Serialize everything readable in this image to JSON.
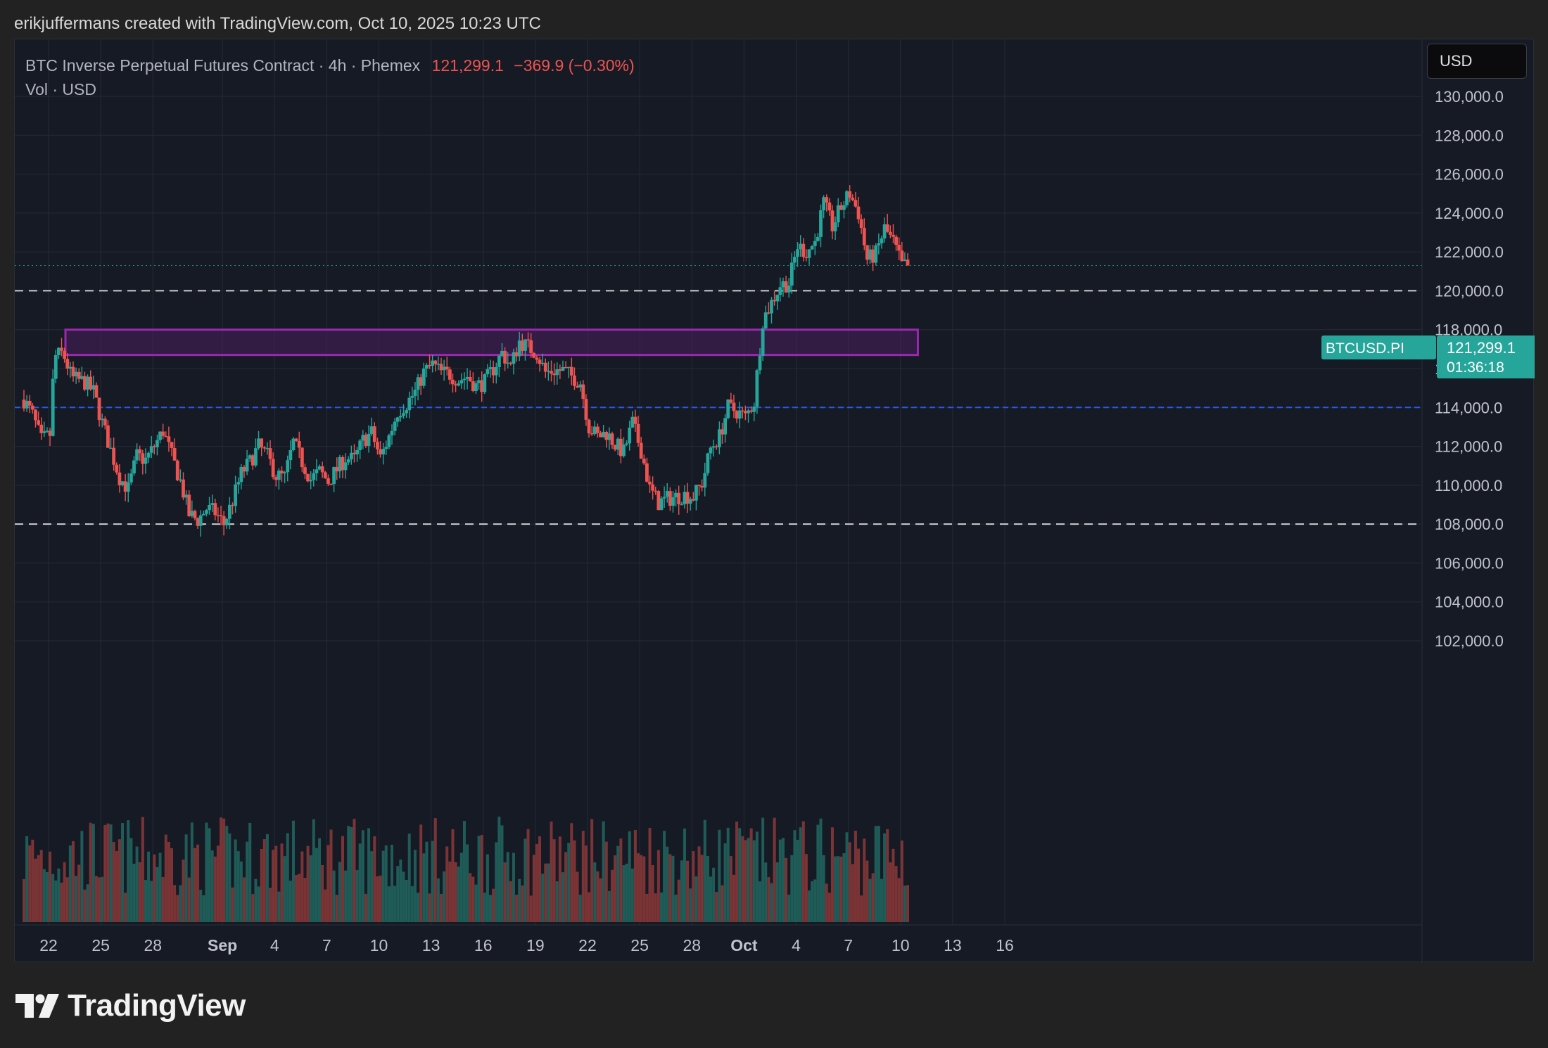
{
  "header": {
    "attribution": "erikjuffermans created with TradingView.com, Oct 10, 2025 10:23 UTC"
  },
  "legend": {
    "symbol": "BTC Inverse Perpetual Futures Contract · 4h · Phemex",
    "last": "121,299.1",
    "change": "−369.9 (−0.30%)",
    "volume_label": "Vol · USD"
  },
  "toolbar": {
    "currency_button": "USD"
  },
  "price_label": {
    "ticker": "BTCUSD.PI",
    "price": "121,299.1",
    "countdown": "01:36:18"
  },
  "branding": {
    "logo_text": "TradingView"
  },
  "colors": {
    "up": "#26a69a",
    "down": "#ef5350",
    "zone_border": "#9c27b0",
    "zone_fill": "#4a1f5f",
    "blue_line": "#2962ff",
    "white_line": "#e0e0e0",
    "grid": "#262a36",
    "axis_text": "#c0c3cc",
    "price_tag": "#26a69a"
  },
  "chart_data": {
    "type": "candlestick",
    "title": "BTC Inverse Perpetual Futures Contract · 4h · Phemex",
    "interval": "4h",
    "y_axis": {
      "min": 101500,
      "max": 131000,
      "position": "right",
      "ticks": [
        102000,
        104000,
        106000,
        108000,
        110000,
        112000,
        114000,
        116000,
        118000,
        120000,
        122000,
        124000,
        126000,
        128000,
        130000
      ],
      "tick_labels": [
        "102,000.0",
        "104,000.0",
        "106,000.0",
        "108,000.0",
        "110,000.0",
        "112,000.0",
        "114,000.0",
        "116,000.0",
        "118,000.0",
        "120,000.0",
        "122,000.0",
        "124,000.0",
        "126,000.0",
        "128,000.0",
        "130,000.0"
      ]
    },
    "x_axis": {
      "start_date": "2025-08-20T12:00Z",
      "end_date": "2025-10-17T00:00Z",
      "ticks": [
        {
          "label": "22",
          "date": "2025-08-22"
        },
        {
          "label": "25",
          "date": "2025-08-25"
        },
        {
          "label": "28",
          "date": "2025-08-28"
        },
        {
          "label": "Sep",
          "date": "2025-09-01",
          "bold": true
        },
        {
          "label": "4",
          "date": "2025-09-04"
        },
        {
          "label": "7",
          "date": "2025-09-07"
        },
        {
          "label": "10",
          "date": "2025-09-10"
        },
        {
          "label": "13",
          "date": "2025-09-13"
        },
        {
          "label": "16",
          "date": "2025-09-16"
        },
        {
          "label": "19",
          "date": "2025-09-19"
        },
        {
          "label": "22",
          "date": "2025-09-22"
        },
        {
          "label": "25",
          "date": "2025-09-25"
        },
        {
          "label": "28",
          "date": "2025-09-28"
        },
        {
          "label": "Oct",
          "date": "2025-10-01",
          "bold": true
        },
        {
          "label": "4",
          "date": "2025-10-04"
        },
        {
          "label": "7",
          "date": "2025-10-07"
        },
        {
          "label": "10",
          "date": "2025-10-10"
        },
        {
          "label": "13",
          "date": "2025-10-13"
        },
        {
          "label": "16",
          "date": "2025-10-16"
        }
      ]
    },
    "close_path": [
      [
        "2025-08-20T12:00Z",
        114400
      ],
      [
        "2025-08-21T00:00Z",
        113600
      ],
      [
        "2025-08-21T12:00Z",
        112300
      ],
      [
        "2025-08-22T00:00Z",
        112600
      ],
      [
        "2025-08-22T06:00Z",
        116600
      ],
      [
        "2025-08-22T18:00Z",
        116800
      ],
      [
        "2025-08-23T06:00Z",
        115500
      ],
      [
        "2025-08-24T00:00Z",
        115300
      ],
      [
        "2025-08-24T12:00Z",
        114800
      ],
      [
        "2025-08-25T00:00Z",
        113200
      ],
      [
        "2025-08-25T12:00Z",
        111800
      ],
      [
        "2025-08-26T00:00Z",
        110400
      ],
      [
        "2025-08-26T12:00Z",
        109800
      ],
      [
        "2025-08-27T00:00Z",
        111500
      ],
      [
        "2025-08-27T12:00Z",
        111300
      ],
      [
        "2025-08-28T00:00Z",
        112000
      ],
      [
        "2025-08-28T12:00Z",
        112800
      ],
      [
        "2025-08-29T00:00Z",
        111500
      ],
      [
        "2025-08-29T12:00Z",
        110200
      ],
      [
        "2025-08-30T00:00Z",
        108500
      ],
      [
        "2025-08-30T12:00Z",
        108200
      ],
      [
        "2025-08-31T00:00Z",
        108800
      ],
      [
        "2025-08-31T12:00Z",
        108600
      ],
      [
        "2025-09-01T00:00Z",
        108000
      ],
      [
        "2025-09-01T12:00Z",
        109200
      ],
      [
        "2025-09-02T00:00Z",
        110600
      ],
      [
        "2025-09-02T12:00Z",
        111200
      ],
      [
        "2025-09-03T00:00Z",
        112000
      ],
      [
        "2025-09-03T12:00Z",
        111500
      ],
      [
        "2025-09-04T00:00Z",
        110500
      ],
      [
        "2025-09-04T12:00Z",
        110400
      ],
      [
        "2025-09-05T00:00Z",
        112200
      ],
      [
        "2025-09-05T12:00Z",
        111200
      ],
      [
        "2025-09-06T00:00Z",
        110300
      ],
      [
        "2025-09-06T12:00Z",
        110700
      ],
      [
        "2025-09-07T00:00Z",
        110200
      ],
      [
        "2025-09-07T12:00Z",
        110800
      ],
      [
        "2025-09-08T00:00Z",
        111400
      ],
      [
        "2025-09-08T12:00Z",
        111300
      ],
      [
        "2025-09-09T00:00Z",
        112300
      ],
      [
        "2025-09-09T12:00Z",
        112700
      ],
      [
        "2025-09-10T00:00Z",
        111400
      ],
      [
        "2025-09-10T12:00Z",
        112500
      ],
      [
        "2025-09-11T00:00Z",
        113800
      ],
      [
        "2025-09-11T12:00Z",
        114200
      ],
      [
        "2025-09-12T00:00Z",
        114800
      ],
      [
        "2025-09-12T12:00Z",
        115800
      ],
      [
        "2025-09-13T00:00Z",
        116200
      ],
      [
        "2025-09-13T12:00Z",
        115800
      ],
      [
        "2025-09-14T00:00Z",
        115700
      ],
      [
        "2025-09-14T12:00Z",
        115400
      ],
      [
        "2025-09-15T00:00Z",
        115600
      ],
      [
        "2025-09-15T12:00Z",
        115100
      ],
      [
        "2025-09-16T00:00Z",
        115300
      ],
      [
        "2025-09-16T12:00Z",
        116000
      ],
      [
        "2025-09-17T00:00Z",
        116800
      ],
      [
        "2025-09-17T12:00Z",
        116100
      ],
      [
        "2025-09-18T00:00Z",
        117400
      ],
      [
        "2025-09-18T12:00Z",
        117100
      ],
      [
        "2025-09-19T00:00Z",
        116800
      ],
      [
        "2025-09-19T12:00Z",
        115800
      ],
      [
        "2025-09-20T00:00Z",
        115900
      ],
      [
        "2025-09-20T12:00Z",
        115900
      ],
      [
        "2025-09-21T00:00Z",
        115600
      ],
      [
        "2025-09-21T12:00Z",
        115300
      ],
      [
        "2025-09-22T00:00Z",
        113000
      ],
      [
        "2025-09-22T12:00Z",
        112500
      ],
      [
        "2025-09-23T00:00Z",
        112700
      ],
      [
        "2025-09-23T12:00Z",
        112100
      ],
      [
        "2025-09-24T00:00Z",
        111700
      ],
      [
        "2025-09-24T12:00Z",
        113200
      ],
      [
        "2025-09-25T00:00Z",
        111800
      ],
      [
        "2025-09-25T12:00Z",
        109800
      ],
      [
        "2025-09-26T00:00Z",
        109100
      ],
      [
        "2025-09-26T12:00Z",
        109300
      ],
      [
        "2025-09-27T00:00Z",
        109400
      ],
      [
        "2025-09-27T12:00Z",
        109500
      ],
      [
        "2025-09-28T00:00Z",
        109400
      ],
      [
        "2025-09-28T12:00Z",
        110100
      ],
      [
        "2025-09-29T00:00Z",
        111900
      ],
      [
        "2025-09-29T12:00Z",
        112500
      ],
      [
        "2025-09-30T00:00Z",
        114000
      ],
      [
        "2025-09-30T12:00Z",
        113800
      ],
      [
        "2025-10-01T00:00Z",
        113500
      ],
      [
        "2025-10-01T12:00Z",
        114300
      ],
      [
        "2025-10-02T00:00Z",
        118500
      ],
      [
        "2025-10-02T12:00Z",
        119400
      ],
      [
        "2025-10-03T00:00Z",
        120300
      ],
      [
        "2025-10-03T12:00Z",
        120400
      ],
      [
        "2025-10-04T00:00Z",
        122300
      ],
      [
        "2025-10-04T12:00Z",
        122000
      ],
      [
        "2025-10-05T00:00Z",
        122500
      ],
      [
        "2025-10-05T12:00Z",
        124500
      ],
      [
        "2025-10-06T00:00Z",
        123300
      ],
      [
        "2025-10-06T12:00Z",
        124300
      ],
      [
        "2025-10-07T00:00Z",
        125000
      ],
      [
        "2025-10-07T12:00Z",
        124000
      ],
      [
        "2025-10-08T00:00Z",
        121600
      ],
      [
        "2025-10-08T12:00Z",
        121900
      ],
      [
        "2025-10-09T00:00Z",
        123200
      ],
      [
        "2025-10-09T12:00Z",
        122500
      ],
      [
        "2025-10-10T00:00Z",
        121300
      ],
      [
        "2025-10-10T08:00Z",
        121299.1
      ]
    ],
    "horizontal_lines": [
      {
        "price": 120000,
        "style": "dashed",
        "color": "#e0e0e0"
      },
      {
        "price": 108000,
        "style": "dashed",
        "color": "#e0e0e0"
      },
      {
        "price": 114000,
        "style": "dashed",
        "color": "#2962ff"
      },
      {
        "price": 121299.1,
        "style": "dotted",
        "color": "#26a69a"
      }
    ],
    "zones": [
      {
        "from_date": "2025-08-22T00:00Z",
        "to_date": "2025-10-11T00:00Z",
        "low": 116700,
        "high": 118000
      }
    ],
    "volume": {
      "shown": true,
      "label": "Vol · USD"
    },
    "grid": true
  }
}
